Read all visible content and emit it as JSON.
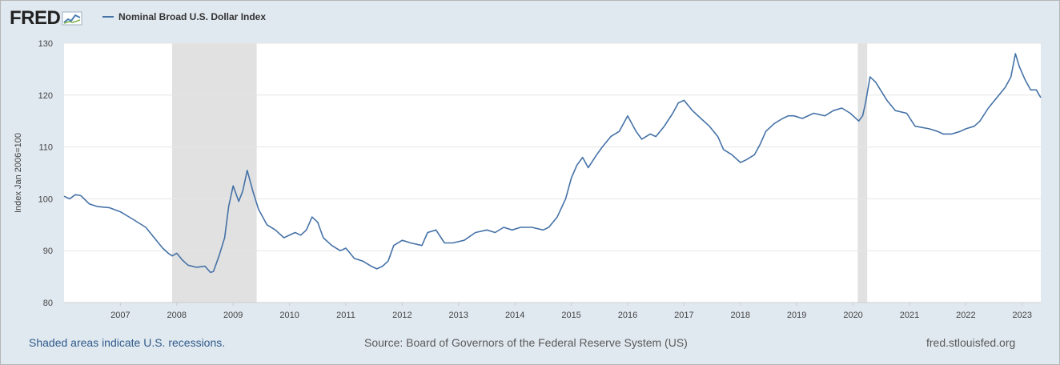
{
  "header": {
    "logo_text": "FRED",
    "logo_icon": "chart-line-icon"
  },
  "chart_data": {
    "type": "line",
    "title": "",
    "legend": "top-left",
    "xlabel": "",
    "ylabel": "Index Jan 2006=100",
    "ylim": [
      80,
      130
    ],
    "xlim": [
      2006.0,
      2023.33
    ],
    "yticks": [
      80,
      90,
      100,
      110,
      120,
      130
    ],
    "xticks": [
      "2007",
      "2008",
      "2009",
      "2010",
      "2011",
      "2012",
      "2013",
      "2014",
      "2015",
      "2016",
      "2017",
      "2018",
      "2019",
      "2020",
      "2021",
      "2022",
      "2023"
    ],
    "grid": true,
    "recessions": [
      [
        2007.917,
        2009.417
      ],
      [
        2020.083,
        2020.25
      ]
    ],
    "colors": {
      "line": "#4572a7",
      "recession": "#e1e1e1",
      "background": "#e1e9f0"
    },
    "series": [
      {
        "name": "Nominal Broad U.S. Dollar Index",
        "x": [
          2006.0,
          2006.1,
          2006.2,
          2006.3,
          2006.45,
          2006.6,
          2006.8,
          2007.0,
          2007.2,
          2007.45,
          2007.6,
          2007.75,
          2007.85,
          2007.92,
          2008.0,
          2008.1,
          2008.2,
          2008.35,
          2008.5,
          2008.6,
          2008.65,
          2008.75,
          2008.85,
          2008.92,
          2009.0,
          2009.1,
          2009.17,
          2009.25,
          2009.35,
          2009.45,
          2009.6,
          2009.75,
          2009.9,
          2010.1,
          2010.2,
          2010.3,
          2010.4,
          2010.5,
          2010.6,
          2010.75,
          2010.9,
          2011.0,
          2011.15,
          2011.3,
          2011.45,
          2011.55,
          2011.65,
          2011.75,
          2011.85,
          2012.0,
          2012.15,
          2012.35,
          2012.45,
          2012.6,
          2012.75,
          2012.9,
          2013.1,
          2013.3,
          2013.5,
          2013.65,
          2013.8,
          2013.95,
          2014.1,
          2014.3,
          2014.5,
          2014.6,
          2014.75,
          2014.9,
          2015.0,
          2015.1,
          2015.2,
          2015.3,
          2015.45,
          2015.55,
          2015.7,
          2015.85,
          2016.0,
          2016.15,
          2016.25,
          2016.4,
          2016.5,
          2016.65,
          2016.8,
          2016.9,
          2017.0,
          2017.15,
          2017.3,
          2017.45,
          2017.6,
          2017.7,
          2017.85,
          2018.0,
          2018.1,
          2018.25,
          2018.35,
          2018.45,
          2018.6,
          2018.75,
          2018.85,
          2018.95,
          2019.1,
          2019.3,
          2019.5,
          2019.65,
          2019.8,
          2019.95,
          2020.1,
          2020.17,
          2020.22,
          2020.3,
          2020.4,
          2020.6,
          2020.75,
          2020.95,
          2021.1,
          2021.35,
          2021.5,
          2021.6,
          2021.75,
          2021.9,
          2022.0,
          2022.15,
          2022.25,
          2022.4,
          2022.55,
          2022.7,
          2022.8,
          2022.88,
          2022.95,
          2023.05,
          2023.15,
          2023.25,
          2023.33
        ],
        "values": [
          100.5,
          100.0,
          100.8,
          100.6,
          99.0,
          98.5,
          98.3,
          97.5,
          96.2,
          94.5,
          92.5,
          90.5,
          89.5,
          89.0,
          89.5,
          88.2,
          87.2,
          86.8,
          87.0,
          85.8,
          86.0,
          89.0,
          92.5,
          98.5,
          102.5,
          99.5,
          101.5,
          105.5,
          101.5,
          98.0,
          95.0,
          94.0,
          92.5,
          93.5,
          93.0,
          94.0,
          96.5,
          95.5,
          92.5,
          91.0,
          90.0,
          90.5,
          88.5,
          88.0,
          87.0,
          86.5,
          87.0,
          88.0,
          91.0,
          92.0,
          91.5,
          91.0,
          93.5,
          94.0,
          91.5,
          91.5,
          92.0,
          93.5,
          94.0,
          93.5,
          94.5,
          94.0,
          94.5,
          94.5,
          94.0,
          94.5,
          96.5,
          100.0,
          104.0,
          106.5,
          108.0,
          106.0,
          108.5,
          110.0,
          112.0,
          113.0,
          116.0,
          113.0,
          111.5,
          112.5,
          112.0,
          114.0,
          116.5,
          118.5,
          119.0,
          117.0,
          115.5,
          114.0,
          112.0,
          109.5,
          108.5,
          107.0,
          107.5,
          108.5,
          110.5,
          113.0,
          114.5,
          115.5,
          116.0,
          116.0,
          115.5,
          116.5,
          116.0,
          117.0,
          117.5,
          116.5,
          115.0,
          116.0,
          118.5,
          123.5,
          122.5,
          119.0,
          117.0,
          116.5,
          114.0,
          113.5,
          113.0,
          112.5,
          112.5,
          113.0,
          113.5,
          114.0,
          115.0,
          117.5,
          119.5,
          121.5,
          123.5,
          128.0,
          125.5,
          123.0,
          121.0,
          121.0,
          119.5
        ]
      }
    ]
  },
  "footer": {
    "recession_note": "Shaded areas indicate U.S. recessions.",
    "source": "Source: Board of Governors of the Federal Reserve System (US)",
    "site": "fred.stlouisfed.org"
  }
}
